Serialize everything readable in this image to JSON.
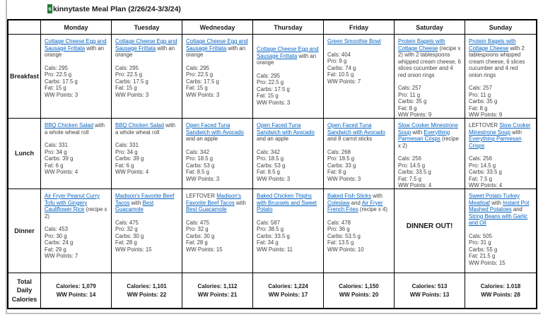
{
  "title": {
    "logo_letter": "s",
    "text": "kinnytaste Meal Plan (2/26/24-3/3/24)"
  },
  "colors": {
    "link": "#0563c1",
    "logo_green": "#217a36",
    "border": "#000000"
  },
  "table": {
    "days": [
      "Monday",
      "Tuesday",
      "Wednesday",
      "Thursday",
      "Friday",
      "Saturday",
      "Sunday"
    ],
    "rows": [
      {
        "label": "Breakfast",
        "cells": [
          {
            "segments": [
              {
                "t": "Cottage Cheese Egg and Sausage Frittata",
                "link": true
              },
              {
                "t": " with an orange",
                "link": false
              }
            ],
            "stats": [
              "Cals: 295",
              "Pro: 22.5 g",
              "Carbs: 17.5 g",
              "Fat: 15 g",
              "WW Points: 3"
            ]
          },
          {
            "segments": [
              {
                "t": "Cottage Cheese Egg and Sausage Frittata",
                "link": true
              },
              {
                "t": " with an orange",
                "link": false
              }
            ],
            "stats": [
              "Cals: 295",
              "Pro: 22.5 g",
              "Carbs: 17.5 g",
              "Fat: 15 g",
              "WW Points: 3"
            ]
          },
          {
            "segments": [
              {
                "t": "Cottage Cheese Egg and Sausage Frittata",
                "link": true
              },
              {
                "t": " with an orange",
                "link": false
              }
            ],
            "stats": [
              "Cals: 295",
              "Pro: 22.5 g",
              "Carbs: 17.5 g",
              "Fat: 15 g",
              "WW Points: 3"
            ]
          },
          {
            "gap": true,
            "segments": [
              {
                "t": "Cottage Cheese Egg and Sausage Frittata",
                "link": true
              },
              {
                "t": " with an orange",
                "link": false
              }
            ],
            "stats": [
              "Cals: 295",
              "Pro: 22.5 g",
              "Carbs: 17.5 g",
              "Fat: 15 g",
              "WW Points: 3"
            ]
          },
          {
            "segments": [
              {
                "t": "Green Smoothie Bowl",
                "link": true
              }
            ],
            "stats": [
              "Cals: 404",
              "Pro: 9 g",
              "Carbs: 74 g",
              "Fat: 10.5 g",
              "WW Points: 7"
            ]
          },
          {
            "segments": [
              {
                "t": "Protein Bagels with Cottage Cheese",
                "link": true
              },
              {
                "t": " (recipe x 2) with 2 tablespoons whipped cream cheese, 6 slices cucumber and 4 red onion rings",
                "link": false
              }
            ],
            "stats": [
              "Cals: 257",
              "Pro: 11 g",
              "Carbs: 35 g",
              "Fat: 8 g",
              "WW Points: 9"
            ]
          },
          {
            "segments": [
              {
                "t": "Protein Bagels with Cottage Cheese",
                "link": true
              },
              {
                "t": " with 2 tablespoons whipped cream cheese, 6 slices cucumber and 4 red onion rings",
                "link": false
              }
            ],
            "stats": [
              "Cals: 257",
              "Pro: 11 g",
              "Carbs: 35 g",
              "Fat: 8 g",
              "WW Points: 9"
            ]
          }
        ]
      },
      {
        "label": "Lunch",
        "cells": [
          {
            "segments": [
              {
                "t": "BBQ Chicken Salad",
                "link": true
              },
              {
                "t": " with a whole wheat roll",
                "link": false
              }
            ],
            "stats": [
              "Cals: 331",
              "Pro: 34 g",
              "Carbs: 39 g",
              "Fat: 6 g",
              "WW Points: 4"
            ]
          },
          {
            "segments": [
              {
                "t": "BBQ Chicken Salad",
                "link": true
              },
              {
                "t": " with a whole wheat roll",
                "link": false
              }
            ],
            "stats": [
              "Cals: 331",
              "Pro: 34 g",
              "Carbs: 39 g",
              "Fat: 6 g",
              "WW Points: 4"
            ]
          },
          {
            "segments": [
              {
                "t": "Open Faced Tuna Sandwich with Avocado",
                "link": true
              },
              {
                "t": " and an apple",
                "link": false
              }
            ],
            "stats": [
              "Cals: 342",
              "Pro: 18.5 g",
              "Carbs: 53 g",
              "Fat: 8.5 g",
              "WW Points: 3"
            ]
          },
          {
            "segments": [
              {
                "t": "Open Faced Tuna Sandwich with Avocado",
                "link": true
              },
              {
                "t": " and an apple",
                "link": false
              }
            ],
            "stats": [
              "Cals: 342",
              "Pro: 18.5 g",
              "Carbs: 53 g",
              "Fat: 8.5 g",
              "WW Points: 3"
            ]
          },
          {
            "segments": [
              {
                "t": "Open Faced Tuna Sandwich with Avocado",
                "link": true
              },
              {
                "t": " and 8 carrot sticks",
                "link": false
              }
            ],
            "stats": [
              "Cals: 268",
              "Pro: 18.5 g",
              "Carbs: 33 g",
              "Fat: 8 g",
              "WW Points: 3"
            ]
          },
          {
            "segments": [
              {
                "t": "Slow Cooker Minestrone Soup",
                "link": true
              },
              {
                "t": " with ",
                "link": false
              },
              {
                "t": "Everything Parmesan Crisps",
                "link": true
              },
              {
                "t": " (recipe x 2)",
                "link": false
              }
            ],
            "stats": [
              "Cals: 256",
              "Pro: 14.5 g",
              "Carbs: 33.5 g",
              "Fat: 7.5 g",
              "WW Points: 4"
            ]
          },
          {
            "segments": [
              {
                "t": "LEFTOVER ",
                "link": false
              },
              {
                "t": "Slow Cooker Minestrone Soup",
                "link": true
              },
              {
                "t": " with ",
                "link": false
              },
              {
                "t": "Everything Parmesan Crisps",
                "link": true
              }
            ],
            "stats": [
              "Cals: 256",
              "Pro: 14.5 g",
              "Carbs: 33.5 g",
              "Fat: 7.5 g",
              "WW Points: 4"
            ]
          }
        ]
      },
      {
        "label": "Dinner",
        "cells": [
          {
            "segments": [
              {
                "t": "Air Fryer Peanut Curry Tofu with Gingery Cauliflower Rice",
                "link": true
              },
              {
                "t": " (recipe x 2)",
                "link": false
              }
            ],
            "stats": [
              "Cals: 453",
              "Pro: 30 g",
              "Carbs: 24 g",
              "Fat: 29 g",
              "WW Points: 7"
            ]
          },
          {
            "segments": [
              {
                "t": "Madison's Favorite Beef Tacos",
                "link": true
              },
              {
                "t": " with ",
                "link": false
              },
              {
                "t": "Best Guacamole",
                "link": true
              }
            ],
            "stats": [
              "Cals: 475",
              "Pro: 32 g",
              "Carbs: 30 g",
              "Fat: 28 g",
              "WW Points: 15"
            ]
          },
          {
            "segments": [
              {
                "t": "LEFTOVER ",
                "link": false
              },
              {
                "t": "Madison's Favorite Beef Tacos",
                "link": true
              },
              {
                "t": " with ",
                "link": false
              },
              {
                "t": "Best Guacamole",
                "link": true
              }
            ],
            "stats": [
              "Cals: 475",
              "Pro: 32 g",
              "Carbs: 30 g",
              "Fat: 28 g",
              "WW Points: 15"
            ]
          },
          {
            "segments": [
              {
                "t": "Baked Chicken Thighs with Brussels and Sweet Potato",
                "link": true
              }
            ],
            "stats": [
              "Cals: 587",
              "Pro: 38.5 g",
              "Carbs: 33.5 g",
              "Fat: 34 g",
              "WW Points: 11"
            ]
          },
          {
            "segments": [
              {
                "t": "Baked Fish Sticks",
                "link": true
              },
              {
                "t": " with ",
                "link": false
              },
              {
                "t": "Coleslaw",
                "link": true
              },
              {
                "t": " and ",
                "link": false
              },
              {
                "t": "Air Fryer French Fries",
                "link": true
              },
              {
                "t": " (recipe x 4)",
                "link": false
              }
            ],
            "stats": [
              "Cals: 478",
              "Pro: 36 g",
              "Carbs: 53.5 g",
              "Fat: 13.5 g",
              "WW Points: 10"
            ]
          },
          {
            "special": "DINNER OUT!"
          },
          {
            "segments": [
              {
                "t": "Sweet Potato Turkey Meatloaf",
                "link": true
              },
              {
                "t": " with ",
                "link": false
              },
              {
                "t": "Instant Pot Mashed Potatoes",
                "link": true
              },
              {
                "t": " and ",
                "link": false
              },
              {
                "t": "String Beans with Garlic and Oil",
                "link": true
              }
            ],
            "stats": [
              "Cals: 505",
              "Pro: 31 g",
              "Carbs: 55 g",
              "Fat: 21.5 g",
              "WW Points: 15"
            ]
          }
        ]
      }
    ],
    "totals": {
      "label": "Total Daily Calories",
      "cells": [
        {
          "calories": "Calories: 1,079",
          "ww": "WW Points: 14"
        },
        {
          "calories": "Calories: 1,101",
          "ww": "WW Points: 22"
        },
        {
          "calories": "Calories: 1,112",
          "ww": "WW Points: 21"
        },
        {
          "calories": "Calories: 1,224",
          "ww": "WW Points: 17"
        },
        {
          "calories": "Calories: 1,150",
          "ww": "WW Points: 20"
        },
        {
          "calories": "Calories: 513",
          "ww": "WW Points: 13"
        },
        {
          "calories": "Calories: 1.018",
          "ww": "WW Points: 28"
        }
      ]
    }
  }
}
